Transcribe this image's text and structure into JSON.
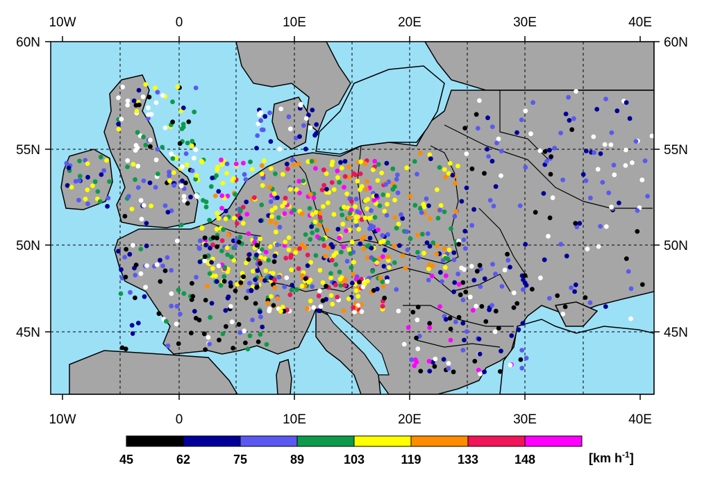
{
  "map": {
    "top_axis_labels": [
      "10W",
      "0",
      "10E",
      "20E",
      "30E",
      "40E"
    ],
    "bottom_axis_labels": [
      "10W",
      "0",
      "10E",
      "20E",
      "30E",
      "40E"
    ],
    "left_axis_labels": [
      "60N",
      "55N",
      "50N",
      "45N"
    ],
    "right_axis_labels": [
      "60N",
      "55N",
      "50N",
      "45N"
    ],
    "gridlines": "dashed",
    "colors": {
      "sea": "#9ce0f6",
      "land": "#a6a6a6",
      "border": "#000000"
    }
  },
  "legend": {
    "unit_prefix": "[km h",
    "unit_exp": "-1",
    "unit_suffix": "]",
    "bins": [
      {
        "label": "45",
        "color": "#000000"
      },
      {
        "label": "62",
        "color": "#000099"
      },
      {
        "label": "75",
        "color": "#5959f2"
      },
      {
        "label": "89",
        "color": "#0d9a4a"
      },
      {
        "label": "103",
        "color": "#ffff00"
      },
      {
        "label": "119",
        "color": "#ff8c00"
      },
      {
        "label": "133",
        "color": "#f01459"
      },
      {
        "label": "148",
        "color": "#ff00ff"
      }
    ]
  }
}
